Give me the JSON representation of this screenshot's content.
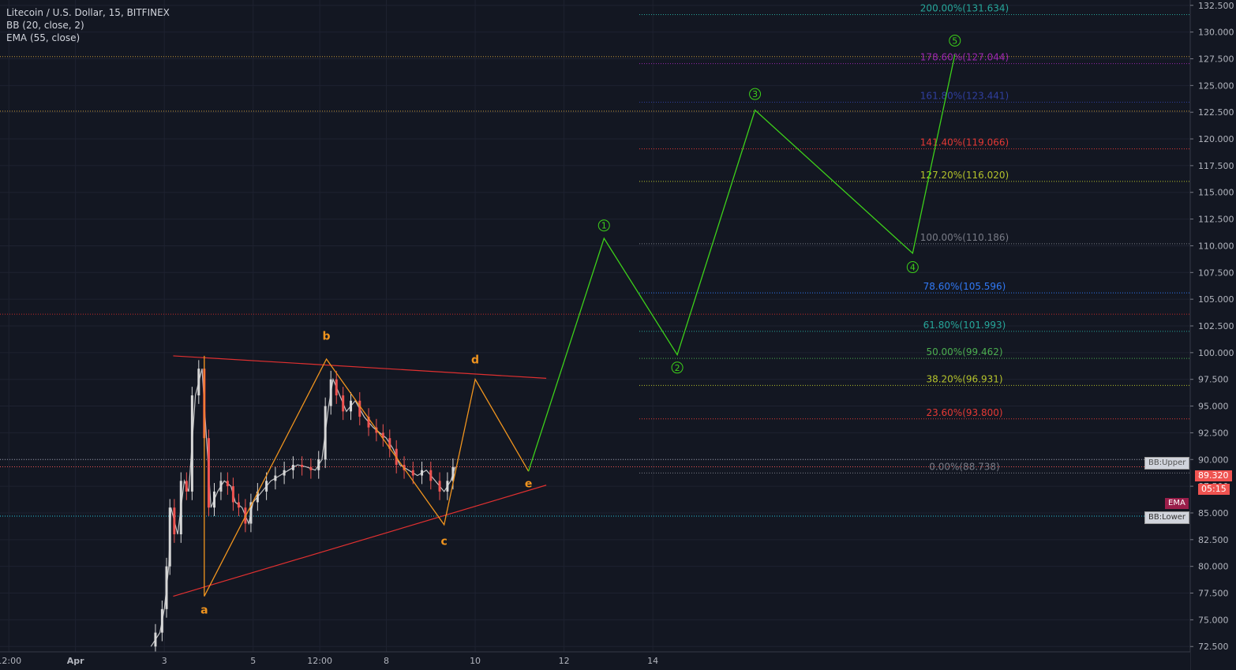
{
  "legend": {
    "symbol": "Litecoin / U.S. Dollar, 15, BITFINEX",
    "bb": "BB (20, close, 2)",
    "ema": "EMA (55, close)"
  },
  "price_tags": {
    "bb_upper": "BB:Upper",
    "last_price": "89.320",
    "countdown": "05:15",
    "ema": "EMA",
    "bb_lower": "BB:Lower"
  },
  "colors": {
    "background": "#131722",
    "grid": "#1e2230",
    "axis_text": "#b2b5be",
    "candle_up": "#d7d7d7",
    "candle_down": "#ef5350",
    "triangle_line": "#e03030",
    "abcde_wave": "#f0941e",
    "impulse_wave": "#3dd11a",
    "last_price": "#ef5350",
    "ema_tag": "#9a1e4a",
    "bb_tag": "#9598a1"
  },
  "chart_data": {
    "type": "line",
    "title": "Litecoin / U.S. Dollar, 15, BITFINEX",
    "indicators": [
      "BB (20, close, 2)",
      "EMA (55, close)"
    ],
    "x_ticks": [
      {
        "label": "12:00",
        "day": -0.5
      },
      {
        "label": "Apr",
        "day": 1
      },
      {
        "label": "3",
        "day": 3
      },
      {
        "label": "5",
        "day": 5
      },
      {
        "label": "12:00",
        "day": 6.5
      },
      {
        "label": "8",
        "day": 8
      },
      {
        "label": "10",
        "day": 10
      },
      {
        "label": "12",
        "day": 12
      },
      {
        "label": "14",
        "day": 14
      }
    ],
    "xlim": [
      -0.7,
      26.1
    ],
    "ylim": [
      72.0,
      133.0
    ],
    "y_ticks": [
      72.5,
      75.0,
      77.5,
      80.0,
      82.5,
      85.0,
      87.5,
      90.0,
      92.5,
      95.0,
      97.5,
      100.0,
      102.5,
      105.0,
      107.5,
      110.0,
      112.5,
      115.0,
      117.5,
      120.0,
      122.5,
      125.0,
      127.5,
      130.0,
      132.5
    ],
    "y_tick_labels": [
      "72.500",
      "75.000",
      "77.500",
      "80.000",
      "82.500",
      "85.000",
      "87.500",
      "90.000",
      "92.500",
      "95.000",
      "97.500",
      "100.000",
      "102.500",
      "105.000",
      "107.500",
      "110.000",
      "112.500",
      "115.000",
      "117.500",
      "120.000",
      "122.500",
      "125.000",
      "127.500",
      "130.000",
      "132.500"
    ],
    "grid": true,
    "price_path": [
      [
        2.7,
        72.5
      ],
      [
        2.9,
        73.8
      ],
      [
        3.0,
        76.0
      ],
      [
        3.1,
        80.0
      ],
      [
        3.15,
        85.5
      ],
      [
        3.3,
        83.0
      ],
      [
        3.45,
        88.0
      ],
      [
        3.55,
        87.0
      ],
      [
        3.7,
        96.0
      ],
      [
        3.85,
        98.5
      ],
      [
        3.95,
        92.0
      ],
      [
        4.05,
        85.5
      ],
      [
        4.2,
        87.0
      ],
      [
        4.35,
        88.0
      ],
      [
        4.5,
        87.5
      ],
      [
        4.6,
        86.0
      ],
      [
        4.75,
        85.5
      ],
      [
        4.9,
        84.0
      ],
      [
        5.0,
        86.0
      ],
      [
        5.2,
        87.0
      ],
      [
        5.4,
        88.0
      ],
      [
        5.6,
        88.5
      ],
      [
        5.8,
        89.0
      ],
      [
        6.0,
        89.5
      ],
      [
        6.2,
        89.3
      ],
      [
        6.4,
        89.0
      ],
      [
        6.55,
        90.0
      ],
      [
        6.7,
        95.0
      ],
      [
        6.8,
        97.5
      ],
      [
        6.95,
        96.0
      ],
      [
        7.1,
        94.5
      ],
      [
        7.3,
        95.5
      ],
      [
        7.5,
        94.0
      ],
      [
        7.7,
        93.0
      ],
      [
        7.85,
        92.5
      ],
      [
        8.0,
        92.0
      ],
      [
        8.15,
        91.0
      ],
      [
        8.3,
        89.5
      ],
      [
        8.5,
        89.0
      ],
      [
        8.7,
        88.5
      ],
      [
        8.9,
        89.0
      ],
      [
        9.1,
        88.0
      ],
      [
        9.3,
        87.0
      ],
      [
        9.45,
        88.0
      ],
      [
        9.55,
        89.3
      ]
    ],
    "triangle_lines": [
      {
        "name": "upper",
        "points": [
          [
            3.2,
            99.7
          ],
          [
            11.6,
            97.6
          ]
        ]
      },
      {
        "name": "lower",
        "points": [
          [
            3.2,
            77.2
          ],
          [
            11.6,
            87.6
          ]
        ]
      }
    ],
    "abcde_wave": {
      "points": [
        [
          3.9,
          99.7
        ],
        [
          3.9,
          77.2
        ],
        [
          6.65,
          99.4
        ],
        [
          9.3,
          83.9
        ],
        [
          10.0,
          97.5
        ],
        [
          11.2,
          88.9
        ]
      ],
      "labels": [
        {
          "text": "a",
          "x": 3.9,
          "y": 75.6
        },
        {
          "text": "b",
          "x": 6.65,
          "y": 101.2
        },
        {
          "text": "c",
          "x": 9.3,
          "y": 82.0
        },
        {
          "text": "d",
          "x": 10.0,
          "y": 99.0
        },
        {
          "text": "e",
          "x": 11.2,
          "y": 87.4
        }
      ]
    },
    "impulse_wave": {
      "points": [
        [
          11.2,
          88.9
        ],
        [
          12.9,
          110.7
        ],
        [
          14.55,
          99.8
        ],
        [
          16.3,
          122.7
        ],
        [
          19.85,
          109.3
        ],
        [
          20.8,
          127.9
        ]
      ],
      "labels": [
        {
          "text": "1",
          "x": 12.9,
          "y": 111.9
        },
        {
          "text": "2",
          "x": 14.55,
          "y": 98.6
        },
        {
          "text": "3",
          "x": 16.3,
          "y": 124.2
        },
        {
          "text": "4",
          "x": 19.85,
          "y": 108.0
        },
        {
          "text": "5",
          "x": 20.8,
          "y": 129.2
        }
      ]
    },
    "fibonacci_levels": [
      {
        "label": "200.00%(131.634)",
        "value": 131.634,
        "color": "#26a69a"
      },
      {
        "label": "178.60%(127.044)",
        "value": 127.044,
        "color": "#9c27b0"
      },
      {
        "label": "161.80%(123.441)",
        "value": 123.441,
        "color": "#303f9f"
      },
      {
        "label": "141.40%(119.066)",
        "value": 119.066,
        "color": "#e53935"
      },
      {
        "label": "127.20%(116.020)",
        "value": 116.02,
        "color": "#b4c22b"
      },
      {
        "label": "100.00%(110.186)",
        "value": 110.186,
        "color": "#787b86"
      },
      {
        "label": "78.60%(105.596)",
        "value": 105.596,
        "color": "#3179f5"
      },
      {
        "label": "61.80%(101.993)",
        "value": 101.993,
        "color": "#26a69a"
      },
      {
        "label": "50.00%(99.462)",
        "value": 99.462,
        "color": "#4caf50"
      },
      {
        "label": "38.20%(96.931)",
        "value": 96.931,
        "color": "#b4c22b"
      },
      {
        "label": "23.60%(93.800)",
        "value": 93.8,
        "color": "#e53935"
      },
      {
        "label": "0.00%(88.738)",
        "value": 88.738,
        "color": "#787b86"
      }
    ],
    "horizontal_lines": [
      {
        "value": 127.7,
        "color": "#c89a3a"
      },
      {
        "value": 122.6,
        "color": "#c89a3a"
      },
      {
        "value": 103.6,
        "color": "#c62828"
      }
    ],
    "last_price": 89.32,
    "bb_upper": 90.0,
    "ema": 86.4,
    "bb_lower": 84.7
  }
}
